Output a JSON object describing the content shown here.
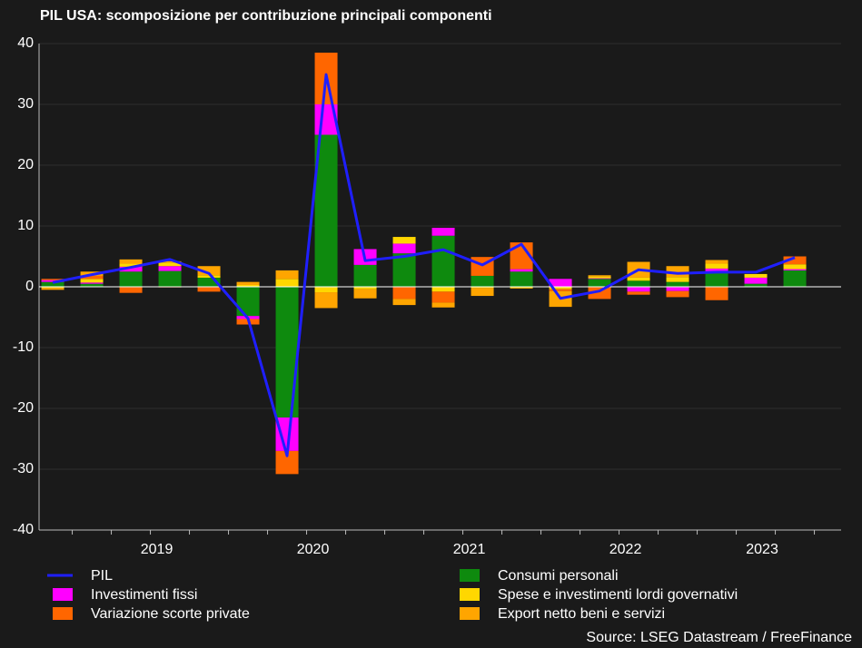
{
  "chart_data": {
    "type": "bar",
    "title": "PIL USA: scomposizione per contribuzione principali componenti",
    "source": "Source: LSEG Datastream / FreeFinance",
    "years": [
      "2019",
      "2020",
      "2021",
      "2022",
      "2023"
    ],
    "ylim": [
      -40,
      40
    ],
    "yticks": [
      -40,
      -30,
      -20,
      -10,
      0,
      10,
      20,
      30,
      40
    ],
    "grid": true,
    "series": [
      {
        "name": "PIL",
        "type": "line",
        "color": "#1f1fff",
        "values": [
          0.7,
          2.0,
          3.2,
          4.5,
          2.2,
          -5.2,
          -27.8,
          34.9,
          4.3,
          5.0,
          6.1,
          3.6,
          7.0,
          -1.9,
          -0.7,
          2.8,
          2.2,
          2.4,
          2.4,
          4.8
        ]
      },
      {
        "name": "Consumi personali",
        "color": "#0e8a0e",
        "values": [
          0.8,
          0.5,
          2.5,
          2.6,
          1.5,
          -4.8,
          -21.5,
          25.0,
          3.6,
          5.5,
          8.4,
          1.8,
          2.5,
          0.0,
          1.3,
          1.0,
          0.8,
          2.5,
          0.5,
          2.7
        ]
      },
      {
        "name": "Investimenti fissi",
        "color": "#ff00ff",
        "values": [
          0.3,
          0.2,
          0.8,
          0.8,
          0.0,
          -0.5,
          -5.5,
          5.0,
          2.6,
          1.6,
          1.3,
          0.0,
          0.4,
          1.3,
          0.1,
          -0.8,
          -0.7,
          0.5,
          1.0,
          0.2
        ]
      },
      {
        "name": "Spese e investimenti lordi governativi",
        "color": "#ffd700",
        "values": [
          -0.2,
          0.6,
          0.5,
          0.6,
          0.4,
          0.3,
          1.3,
          -0.9,
          -0.4,
          1.1,
          -0.8,
          -0.2,
          -0.2,
          -0.4,
          0.3,
          0.5,
          0.8,
          0.8,
          0.6,
          0.8
        ]
      },
      {
        "name": "Variazione scorte private",
        "color": "#ff6600",
        "values": [
          0.2,
          0.5,
          -1.0,
          -0.1,
          -0.8,
          -0.9,
          -3.8,
          8.5,
          0.0,
          -2.0,
          -1.8,
          3.1,
          4.4,
          -0.3,
          -2.0,
          -0.5,
          -1.0,
          -2.2,
          0.0,
          1.3
        ]
      },
      {
        "name": "Export netto beni e servizi",
        "color": "#ffa500",
        "values": [
          -0.3,
          0.7,
          0.7,
          0.2,
          1.5,
          0.5,
          1.4,
          -2.6,
          -1.5,
          -1.0,
          -0.8,
          -1.3,
          -0.1,
          -2.6,
          0.2,
          2.6,
          1.8,
          0.6,
          0.0,
          0.0
        ]
      }
    ]
  }
}
